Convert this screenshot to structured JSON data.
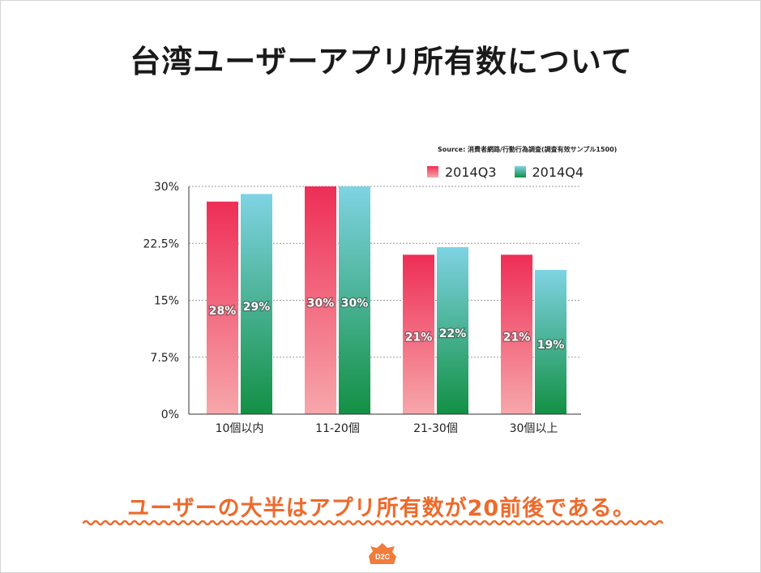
{
  "slide": {
    "title": "台湾ユーザーアプリ所有数について",
    "source": "Source: 消費者網路/行動行為調査(調査有效サンプル1500)",
    "conclusion": "ユーザーの大半はアプリ所有数が20前後である。",
    "logo_text": "D2C"
  },
  "chart_data": {
    "type": "bar",
    "categories": [
      "10個以内",
      "11-20個",
      "21-30個",
      "30個以上"
    ],
    "series": [
      {
        "name": "2014Q3",
        "values": [
          28,
          30,
          21,
          21
        ],
        "labels": [
          "28%",
          "30%",
          "21%",
          "21%"
        ]
      },
      {
        "name": "2014Q4",
        "values": [
          29,
          30,
          22,
          19
        ],
        "labels": [
          "29%",
          "30%",
          "22%",
          "19%"
        ]
      }
    ],
    "ylim": [
      0,
      30
    ],
    "yticks": [
      0,
      7.5,
      15,
      22.5,
      30
    ],
    "ytick_labels": [
      "0%",
      "7.5%",
      "15%",
      "22.5%",
      "30%"
    ],
    "grid": true,
    "legend": "top-right"
  },
  "colors": {
    "q3_top": "#ee2e56",
    "q3_bottom": "#f7a7ab",
    "q4_top": "#7fd3e3",
    "q4_bottom": "#139044",
    "accent": "#ee6a2b",
    "logo": "#f07d3b"
  }
}
